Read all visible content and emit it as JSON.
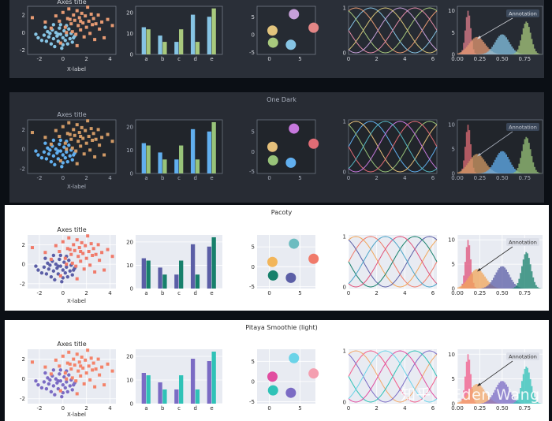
{
  "themes": [
    {
      "name": "",
      "colors": {
        "bg": "#2a2f38",
        "axes": "#262b33",
        "text": "#d3d6dc",
        "grid": "#3a404b",
        "spine": "#747b86",
        "cycle": [
          "#86c4e4",
          "#e69a73",
          "#a8c97d",
          "#e38ca8",
          "#c7a0da",
          "#d8c47a"
        ],
        "scatter": [
          "#86c4e4",
          "#e69a73"
        ],
        "bar": [
          "#86c4e4",
          "#a8c97d"
        ],
        "bubble": [
          "#c7a0da",
          "#e2c47d",
          "#e38686",
          "#a8c97d",
          "#86c4e4"
        ],
        "hist": [
          "#e07f8c",
          "#e69a73",
          "#86c4e4",
          "#a8c97d"
        ],
        "annot_bg": "#3d4a5c",
        "annot_text": "#e0e4ea"
      },
      "texts": {
        "axes_title": "Axes title",
        "xlabel": "X-label",
        "annotation": "Annotation"
      }
    },
    {
      "name": "One Dark",
      "colors": {
        "bg": "#282c34",
        "axes": "#21252b",
        "text": "#abb2bf",
        "grid": "#3b4048",
        "spine": "#6b727e",
        "cycle": [
          "#61afef",
          "#e5c07b",
          "#98c379",
          "#e06c75",
          "#c678dd",
          "#56b6c2"
        ],
        "scatter": [
          "#61afef",
          "#d19a66"
        ],
        "bar": [
          "#61afef",
          "#98c379"
        ],
        "bubble": [
          "#c678dd",
          "#e5c07b",
          "#e06c75",
          "#98c379",
          "#61afef"
        ],
        "hist": [
          "#e06c75",
          "#d19a66",
          "#61afef",
          "#98c379"
        ],
        "annot_bg": "#3a4658",
        "annot_text": "#c8ccd4"
      },
      "texts": {
        "axes_title": "Axes title",
        "xlabel": "X-label",
        "annotation": "Annotation"
      }
    },
    {
      "name": "Pacoty",
      "colors": {
        "bg": "#ffffff",
        "axes": "#e8ebf2",
        "text": "#2b2b2b",
        "grid": "#ffffff",
        "spine": "#ffffff",
        "cycle": [
          "#f07a6a",
          "#f2a65a",
          "#5b5ea6",
          "#17806b",
          "#e0527a",
          "#4aa3c7"
        ],
        "scatter": [
          "#5b5ea6",
          "#f07a6a"
        ],
        "bar": [
          "#5b5ea6",
          "#17806b"
        ],
        "bubble": [
          "#6cbcc0",
          "#f2b55a",
          "#f07a6a",
          "#17806b",
          "#5b5ea6"
        ],
        "hist": [
          "#e0527a",
          "#f2a65a",
          "#5b5ea6",
          "#17806b"
        ],
        "annot_bg": "#dcdfe8",
        "annot_text": "#2b2b2b"
      },
      "texts": {
        "axes_title": "Axes title",
        "xlabel": "X-label",
        "annotation": "Annotation"
      }
    },
    {
      "name": "Pitaya Smoothie (light)",
      "colors": {
        "bg": "#ffffff",
        "axes": "#e8ebf2",
        "text": "#2b2b2b",
        "grid": "#ffffff",
        "spine": "#ffffff",
        "cycle": [
          "#f35b8a",
          "#f4a86a",
          "#7b6bc4",
          "#2fc2b7",
          "#e14da0",
          "#6ad3e8"
        ],
        "scatter": [
          "#7b6bc4",
          "#f4836a"
        ],
        "bar": [
          "#7b6bc4",
          "#2fc2b7"
        ],
        "bubble": [
          "#6ad3e8",
          "#e14da0",
          "#f49fb0",
          "#2fc2b7",
          "#7b6bc4"
        ],
        "hist": [
          "#f35b8a",
          "#f4a86a",
          "#7b6bc4",
          "#2fc2b7"
        ],
        "annot_bg": "#dcdfe8",
        "annot_text": "#2b2b2b"
      },
      "texts": {
        "axes_title": "Axes title",
        "xlabel": "X-label",
        "annotation": "Annotation"
      }
    }
  ],
  "chart_data": {
    "scatter": {
      "type": "scatter",
      "title": "Axes title",
      "xlabel": "X-label",
      "xlim": [
        -3,
        4.5
      ],
      "ylim": [
        -2.5,
        3
      ],
      "xticks": [
        -2,
        0,
        2,
        4
      ],
      "yticks": [
        -2,
        0,
        2
      ],
      "series": [
        {
          "points": [
            [
              -2.1,
              -0.6
            ],
            [
              -1.8,
              -0.9
            ],
            [
              -1.6,
              -0.3
            ],
            [
              -1.4,
              -1.0
            ],
            [
              -1.3,
              0.1
            ],
            [
              -1.2,
              -0.5
            ],
            [
              -1.0,
              -1.3
            ],
            [
              -0.9,
              0.3
            ],
            [
              -0.8,
              -0.7
            ],
            [
              -0.7,
              -1.6
            ],
            [
              -0.6,
              0.0
            ],
            [
              -0.5,
              -0.4
            ],
            [
              -0.4,
              -1.0
            ],
            [
              -0.3,
              0.5
            ],
            [
              -0.2,
              -0.2
            ],
            [
              -0.1,
              -1.8
            ],
            [
              0.0,
              -0.6
            ],
            [
              0.1,
              0.2
            ],
            [
              0.2,
              -0.9
            ],
            [
              0.3,
              -0.3
            ],
            [
              0.4,
              -1.3
            ],
            [
              0.5,
              0.4
            ],
            [
              0.6,
              -0.7
            ],
            [
              0.7,
              -0.1
            ],
            [
              0.8,
              -1.1
            ],
            [
              1.0,
              -0.4
            ],
            [
              -1.5,
              0.6
            ],
            [
              -0.8,
              0.9
            ],
            [
              0.0,
              -1.4
            ],
            [
              0.3,
              0.8
            ],
            [
              -2.3,
              -0.2
            ],
            [
              -1.1,
              -0.1
            ],
            [
              -0.4,
              -0.2
            ],
            [
              0.9,
              -0.6
            ],
            [
              -0.2,
              0.9
            ]
          ]
        },
        {
          "points": [
            [
              -2.6,
              1.7
            ],
            [
              -1.5,
              1.2
            ],
            [
              -1.0,
              0.5
            ],
            [
              -0.6,
              1.9
            ],
            [
              -0.3,
              1.3
            ],
            [
              0.0,
              2.3
            ],
            [
              0.2,
              0.6
            ],
            [
              0.4,
              1.6
            ],
            [
              0.5,
              2.7
            ],
            [
              0.7,
              1.0
            ],
            [
              0.8,
              0.1
            ],
            [
              0.9,
              2.0
            ],
            [
              1.0,
              1.4
            ],
            [
              1.1,
              -0.2
            ],
            [
              1.2,
              2.5
            ],
            [
              1.3,
              0.8
            ],
            [
              1.4,
              1.7
            ],
            [
              1.5,
              0.3
            ],
            [
              1.6,
              2.2
            ],
            [
              1.7,
              1.1
            ],
            [
              1.8,
              -0.5
            ],
            [
              1.9,
              1.9
            ],
            [
              2.0,
              0.6
            ],
            [
              2.1,
              2.9
            ],
            [
              2.2,
              1.3
            ],
            [
              2.3,
              -0.1
            ],
            [
              2.4,
              2.1
            ],
            [
              2.5,
              0.9
            ],
            [
              2.6,
              1.6
            ],
            [
              2.7,
              -0.8
            ],
            [
              2.8,
              1.0
            ],
            [
              3.0,
              2.0
            ],
            [
              3.1,
              0.4
            ],
            [
              3.3,
              1.2
            ],
            [
              3.5,
              -0.6
            ],
            [
              3.8,
              1.5
            ],
            [
              4.2,
              0.8
            ],
            [
              -0.2,
              -1.2
            ],
            [
              0.3,
              0.0
            ],
            [
              1.2,
              -1.5
            ],
            [
              0.6,
              1.5
            ],
            [
              1.5,
              1.3
            ]
          ]
        }
      ]
    },
    "bar": {
      "type": "bar",
      "categories": [
        "a",
        "b",
        "c",
        "d",
        "e"
      ],
      "ylim": [
        0,
        23
      ],
      "yticks": [
        0,
        10,
        20
      ],
      "series": [
        {
          "values": [
            13,
            9,
            6,
            19,
            18
          ]
        },
        {
          "values": [
            12,
            6,
            12,
            6,
            22
          ]
        }
      ]
    },
    "bubble": {
      "type": "scatter",
      "xlim": [
        -2,
        7.5
      ],
      "ylim": [
        -5.5,
        8
      ],
      "xticks": [
        0,
        5
      ],
      "yticks": [
        -5,
        0,
        5
      ],
      "points": [
        [
          4,
          5.8
        ],
        [
          0.5,
          1.2
        ],
        [
          7.2,
          2.0
        ],
        [
          0.6,
          -2.2
        ],
        [
          3.5,
          -2.8
        ]
      ]
    },
    "lines": {
      "type": "line",
      "xlim": [
        0,
        6.28
      ],
      "ylim": [
        0,
        1
      ],
      "xticks": [
        0,
        2,
        4,
        6
      ],
      "yticks": [
        0,
        1
      ],
      "series_count": 6,
      "formula": "0.5+0.5*sin(x + k*pi/3)"
    },
    "hist": {
      "type": "histogram",
      "xlim": [
        0,
        0.95
      ],
      "ylim": [
        0,
        11
      ],
      "xticks": [
        0.0,
        0.25,
        0.5,
        0.75
      ],
      "yticks": [
        0,
        5,
        10
      ],
      "peaks": [
        [
          0.12,
          10,
          0.03
        ],
        [
          0.22,
          4.0,
          0.09
        ],
        [
          0.5,
          4.6,
          0.08
        ],
        [
          0.77,
          7.5,
          0.05
        ]
      ],
      "annotation": "Annotation",
      "arrow_target": [
        0.22,
        3.5
      ]
    }
  }
}
